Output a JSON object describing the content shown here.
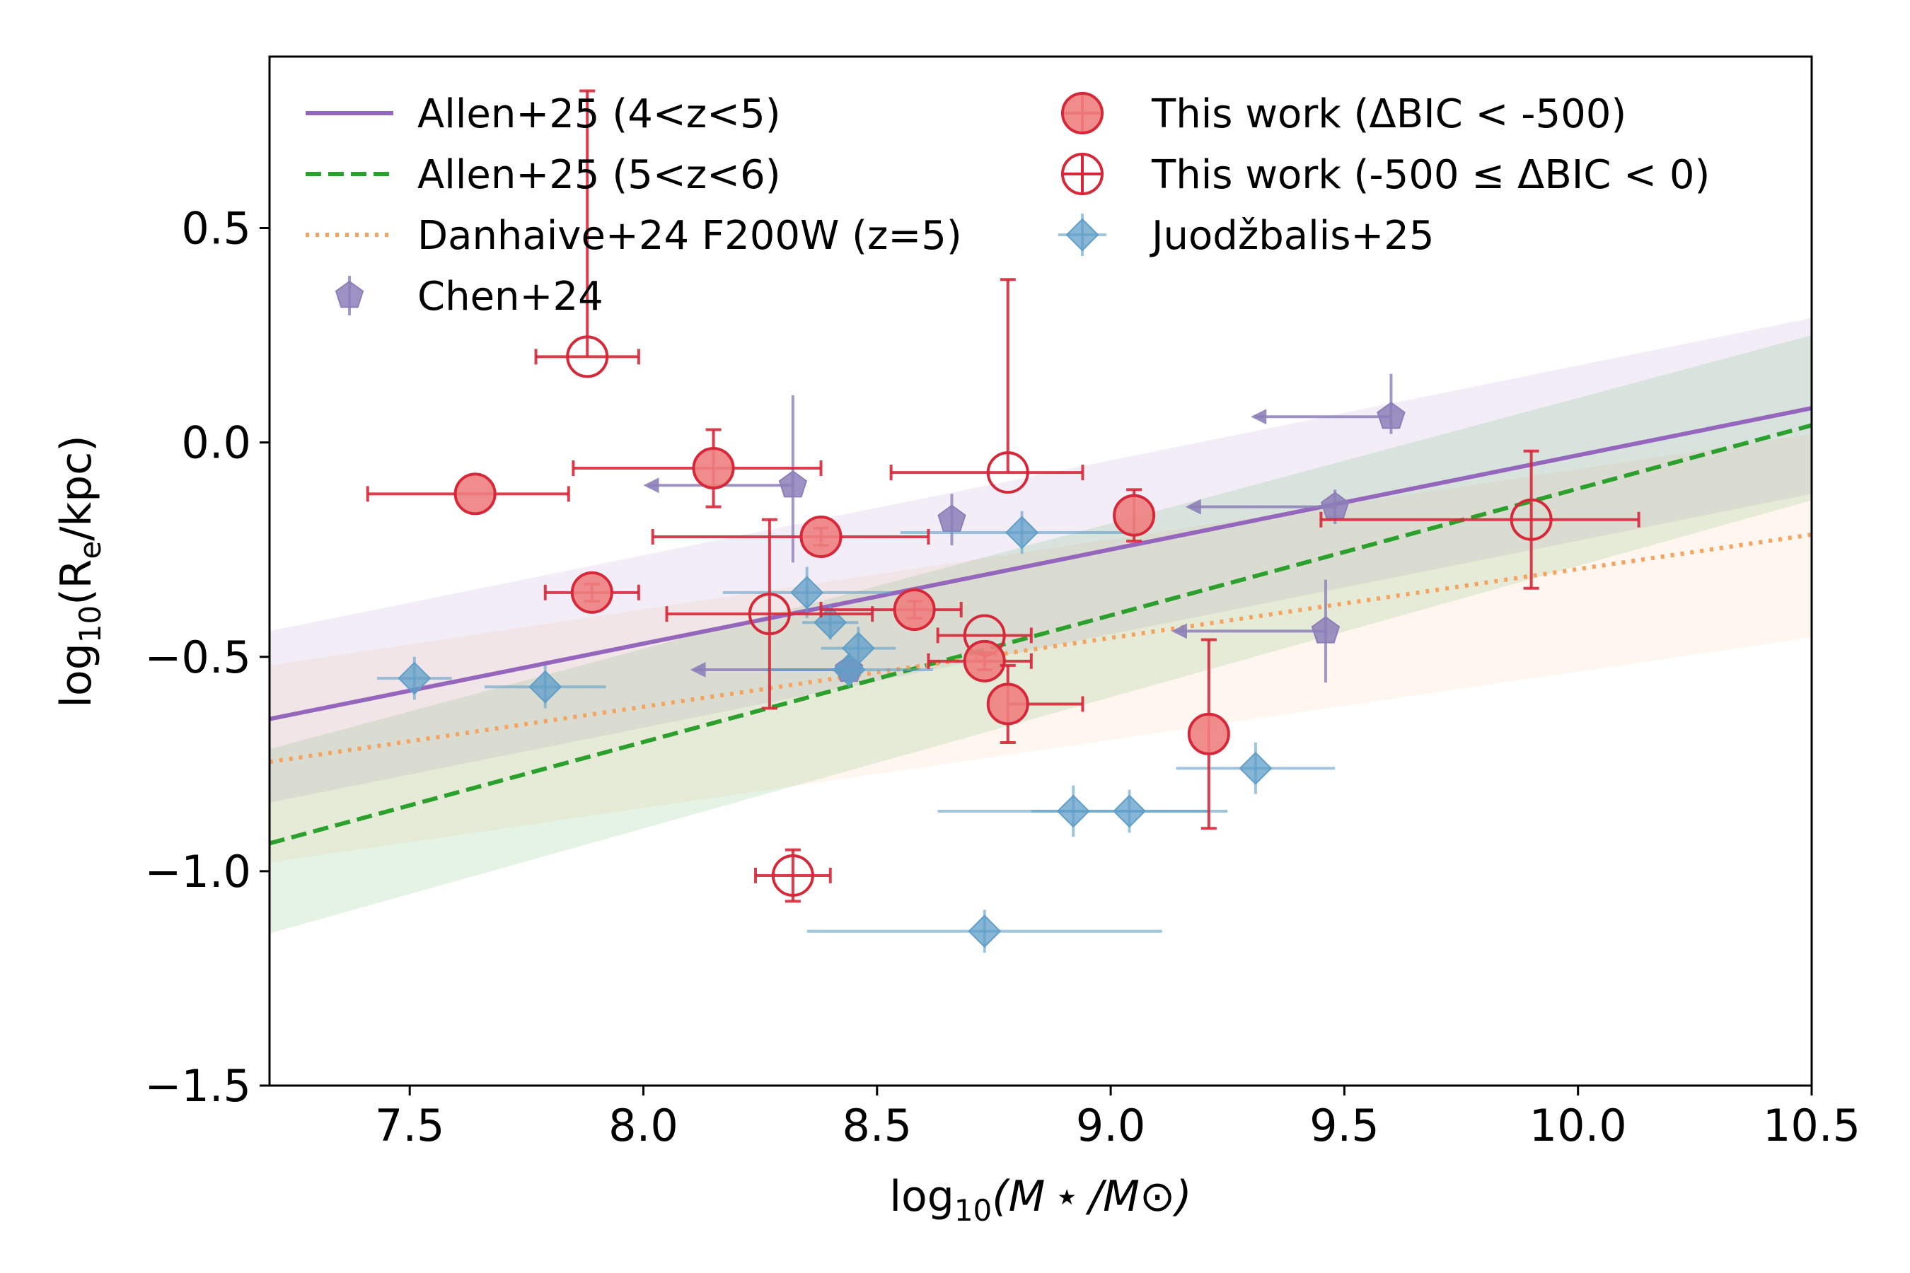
{
  "chart_data": {
    "type": "scatter",
    "xlabel": {
      "main": "log",
      "sub": "10",
      "rest": "(M ⋆ /M⊙)"
    },
    "ylabel": {
      "main": "log",
      "sub": "10",
      "rest": "(R",
      "rsub": "e",
      "tail": "/kpc)"
    },
    "xlim": [
      7.2,
      10.5
    ],
    "ylim": [
      -1.5,
      0.9
    ],
    "xticks": [
      7.5,
      8.0,
      8.5,
      9.0,
      9.5,
      10.0,
      10.5
    ],
    "xtick_labels": [
      "7.5",
      "8.0",
      "8.5",
      "9.0",
      "9.5",
      "10.0",
      "10.5"
    ],
    "yticks": [
      -1.5,
      -1.0,
      -0.5,
      0.0,
      0.5
    ],
    "ytick_labels": [
      "−1.5",
      "−1.0",
      "−0.5",
      "0.0",
      "0.5"
    ],
    "grid": false,
    "colors": {
      "allen_4_5": "#9467bd",
      "allen_5_6": "#2ca02c",
      "danhaive": "#f4a460",
      "chen": "#8c7fb8",
      "this_work": "#d62839",
      "this_work_fill": "#ee8080",
      "juod": "#5f9ec8"
    },
    "lines": [
      {
        "name": "Allen+25 (4<z<5)",
        "style": "solid",
        "color_key": "allen_4_5",
        "x": [
          7.2,
          10.5
        ],
        "y": [
          -0.645,
          0.08
        ],
        "band_low": [
          -0.84,
          -0.12
        ],
        "band_high": [
          -0.44,
          0.29
        ]
      },
      {
        "name": "Allen+25 (5<z<6)",
        "style": "dashed",
        "color_key": "allen_5_6",
        "x": [
          7.2,
          10.5
        ],
        "y": [
          -0.935,
          0.04
        ],
        "band_low": [
          -1.145,
          -0.135
        ],
        "band_high": [
          -0.715,
          0.25
        ]
      },
      {
        "name": "Danhaive+24 F200W (z=5)",
        "style": "dotted",
        "color_key": "danhaive",
        "x": [
          7.2,
          10.5
        ],
        "y": [
          -0.745,
          -0.215
        ],
        "band_low": [
          -0.98,
          -0.455
        ],
        "band_high": [
          -0.52,
          0.02
        ]
      }
    ],
    "series": [
      {
        "name": "This work (ΔBIC < -500)",
        "marker": "filled-circle",
        "points": [
          {
            "x": 7.64,
            "y": -0.12,
            "xerr": [
              0.23,
              0.2
            ],
            "yerr": [
              0,
              0
            ]
          },
          {
            "x": 7.89,
            "y": -0.35,
            "xerr": [
              0.1,
              0.1
            ],
            "yerr": [
              0.02,
              0.02
            ]
          },
          {
            "x": 8.15,
            "y": -0.06,
            "xerr": [
              0.3,
              0.23
            ],
            "yerr": [
              0.09,
              0.09
            ]
          },
          {
            "x": 8.38,
            "y": -0.22,
            "xerr": [
              0.36,
              0.23
            ],
            "yerr": [
              0.02,
              0.02
            ]
          },
          {
            "x": 8.58,
            "y": -0.39,
            "xerr": [
              0.2,
              0.1
            ],
            "yerr": [
              0.02,
              0.02
            ]
          },
          {
            "x": 8.73,
            "y": -0.51,
            "xerr": [
              0.12,
              0.1
            ],
            "yerr": [
              0.02,
              0.02
            ]
          },
          {
            "x": 8.78,
            "y": -0.61,
            "xerr": [
              0.0,
              0.16
            ],
            "yerr": [
              0.09,
              0.09
            ]
          },
          {
            "x": 9.05,
            "y": -0.17,
            "xerr": [
              0.0,
              0.0
            ],
            "yerr": [
              0.06,
              0.06
            ]
          },
          {
            "x": 9.21,
            "y": -0.68,
            "xerr": [
              0.0,
              0.0
            ],
            "yerr": [
              0.22,
              0.22
            ]
          }
        ]
      },
      {
        "name": "This work (-500 ≤ ΔBIC < 0)",
        "marker": "open-circle",
        "points": [
          {
            "x": 7.88,
            "y": 0.2,
            "xerr": [
              0.11,
              0.11
            ],
            "yerr": [
              0.0,
              0.62
            ]
          },
          {
            "x": 8.27,
            "y": -0.4,
            "xerr": [
              0.22,
              0.22
            ],
            "yerr": [
              0.22,
              0.22
            ]
          },
          {
            "x": 8.73,
            "y": -0.45,
            "xerr": [
              0.1,
              0.1
            ],
            "yerr": [
              0.0,
              0.0
            ]
          },
          {
            "x": 8.78,
            "y": -0.07,
            "xerr": [
              0.25,
              0.16
            ],
            "yerr": [
              0.0,
              0.45
            ]
          },
          {
            "x": 8.32,
            "y": -1.01,
            "xerr": [
              0.08,
              0.08
            ],
            "yerr": [
              0.06,
              0.06
            ]
          },
          {
            "x": 9.9,
            "y": -0.18,
            "xerr": [
              0.45,
              0.23
            ],
            "yerr": [
              0.16,
              0.16
            ]
          }
        ]
      },
      {
        "name": "Juodžbalis+25",
        "marker": "diamond",
        "points": [
          {
            "x": 7.51,
            "y": -0.55,
            "xerr": [
              0.08,
              0.08
            ],
            "yerr": [
              0.05,
              0.05
            ]
          },
          {
            "x": 7.79,
            "y": -0.57,
            "xerr": [
              0.13,
              0.13
            ],
            "yerr": [
              0.05,
              0.05
            ]
          },
          {
            "x": 8.35,
            "y": -0.35,
            "xerr": [
              0.18,
              0.18
            ],
            "yerr": [
              0.06,
              0.06
            ]
          },
          {
            "x": 8.4,
            "y": -0.42,
            "xerr": [
              0.06,
              0.06
            ],
            "yerr": [
              0.04,
              0.04
            ]
          },
          {
            "x": 8.44,
            "y": -0.53,
            "xerr": [
              0.18,
              0.18
            ],
            "yerr": [
              0.04,
              0.04
            ]
          },
          {
            "x": 8.46,
            "y": -0.48,
            "xerr": [
              0.08,
              0.08
            ],
            "yerr": [
              0.05,
              0.05
            ]
          },
          {
            "x": 8.81,
            "y": -0.21,
            "xerr": [
              0.26,
              0.26
            ],
            "yerr": [
              0.05,
              0.05
            ]
          },
          {
            "x": 8.92,
            "y": -0.86,
            "xerr": [
              0.29,
              0.29
            ],
            "yerr": [
              0.06,
              0.06
            ]
          },
          {
            "x": 9.04,
            "y": -0.86,
            "xerr": [
              0.21,
              0.21
            ],
            "yerr": [
              0.05,
              0.05
            ]
          },
          {
            "x": 9.31,
            "y": -0.76,
            "xerr": [
              0.17,
              0.17
            ],
            "yerr": [
              0.06,
              0.06
            ]
          },
          {
            "x": 8.73,
            "y": -1.14,
            "xerr": [
              0.38,
              0.38
            ],
            "yerr": [
              0.05,
              0.05
            ]
          }
        ]
      },
      {
        "name": "Chen+24",
        "marker": "pentagon",
        "points": [
          {
            "x": 8.32,
            "y": -0.1,
            "arrow_to": 8.0,
            "yerr": [
              0.18,
              0.21
            ]
          },
          {
            "x": 8.66,
            "y": -0.18,
            "arrow_to": null,
            "yerr": [
              0.06,
              0.06
            ]
          },
          {
            "x": 8.44,
            "y": -0.53,
            "arrow_to": 8.1,
            "yerr": [
              0.0,
              0.0
            ]
          },
          {
            "x": 9.6,
            "y": 0.06,
            "arrow_to": 9.3,
            "yerr": [
              0.04,
              0.1
            ]
          },
          {
            "x": 9.48,
            "y": -0.15,
            "arrow_to": 9.16,
            "yerr": [
              0.04,
              0.04
            ]
          },
          {
            "x": 9.46,
            "y": -0.44,
            "arrow_to": 9.13,
            "yerr": [
              0.12,
              0.12
            ]
          }
        ]
      }
    ],
    "legend": {
      "placement": "top",
      "left_column": [
        "Allen+25 (4<z<5)",
        "Allen+25 (5<z<6)",
        "Danhaive+24 F200W (z=5)",
        "Chen+24"
      ],
      "right_column": [
        "This work (ΔBIC < -500)",
        "This work (-500 ≤ ΔBIC < 0)",
        "Juodžbalis+25"
      ]
    }
  }
}
